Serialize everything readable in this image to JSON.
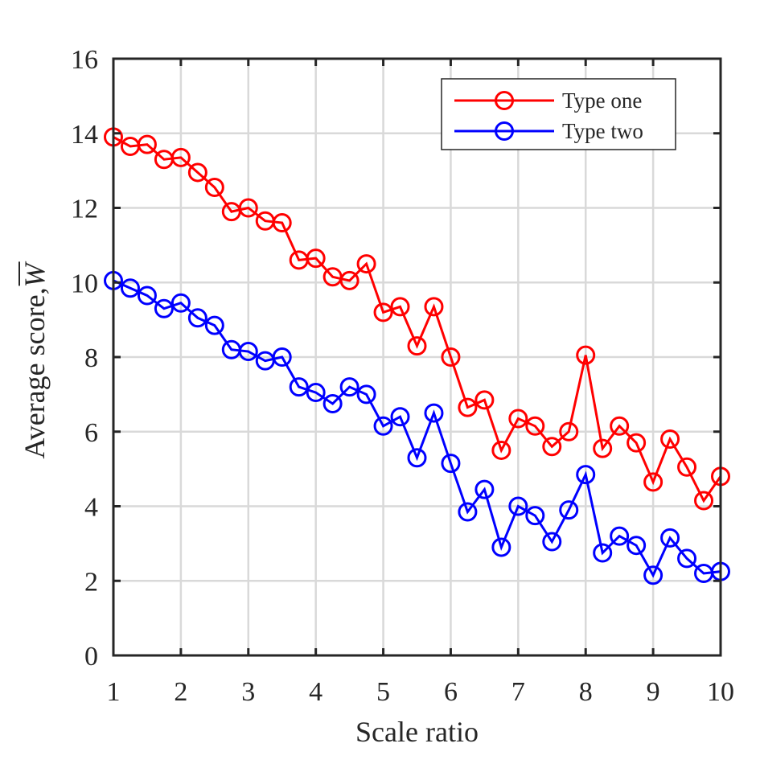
{
  "chart_data": {
    "type": "line",
    "title": "",
    "xlabel": "Scale ratio",
    "ylabel": "Average score,",
    "ylabel_symbol": "W",
    "xlim": [
      1,
      10
    ],
    "ylim": [
      0,
      16
    ],
    "xticks": [
      1,
      2,
      3,
      4,
      5,
      6,
      7,
      8,
      9,
      10
    ],
    "yticks": [
      0,
      2,
      4,
      6,
      8,
      10,
      12,
      14,
      16
    ],
    "grid": true,
    "legend_position": "top-right",
    "x": [
      1,
      1.25,
      1.5,
      1.75,
      2,
      2.25,
      2.5,
      2.75,
      3,
      3.25,
      3.5,
      3.75,
      4,
      4.25,
      4.5,
      4.75,
      5,
      5.25,
      5.5,
      5.75,
      6,
      6.25,
      6.5,
      6.75,
      7,
      7.25,
      7.5,
      7.75,
      8,
      8.25,
      8.5,
      8.75,
      9,
      9.25,
      9.5,
      9.75,
      10
    ],
    "series": [
      {
        "name": "Type one",
        "color": "#ff0000",
        "marker": "circle",
        "values": [
          13.9,
          13.65,
          13.7,
          13.3,
          13.35,
          12.95,
          12.55,
          11.9,
          12.0,
          11.65,
          11.6,
          10.6,
          10.65,
          10.15,
          10.05,
          10.5,
          9.2,
          9.35,
          8.3,
          9.35,
          8.0,
          6.65,
          6.85,
          5.5,
          6.35,
          6.15,
          5.6,
          6.0,
          8.05,
          5.55,
          6.15,
          5.7,
          4.65,
          5.8,
          5.05,
          4.15,
          4.8
        ]
      },
      {
        "name": "Type two",
        "color": "#0000ff",
        "marker": "circle",
        "values": [
          10.05,
          9.85,
          9.65,
          9.3,
          9.45,
          9.05,
          8.85,
          8.2,
          8.15,
          7.9,
          8.0,
          7.2,
          7.05,
          6.75,
          7.2,
          7.0,
          6.15,
          6.4,
          5.3,
          6.5,
          5.15,
          3.85,
          4.45,
          2.9,
          4.0,
          3.75,
          3.05,
          3.9,
          4.85,
          2.75,
          3.2,
          2.95,
          2.15,
          3.15,
          2.6,
          2.2,
          2.25
        ]
      }
    ]
  }
}
